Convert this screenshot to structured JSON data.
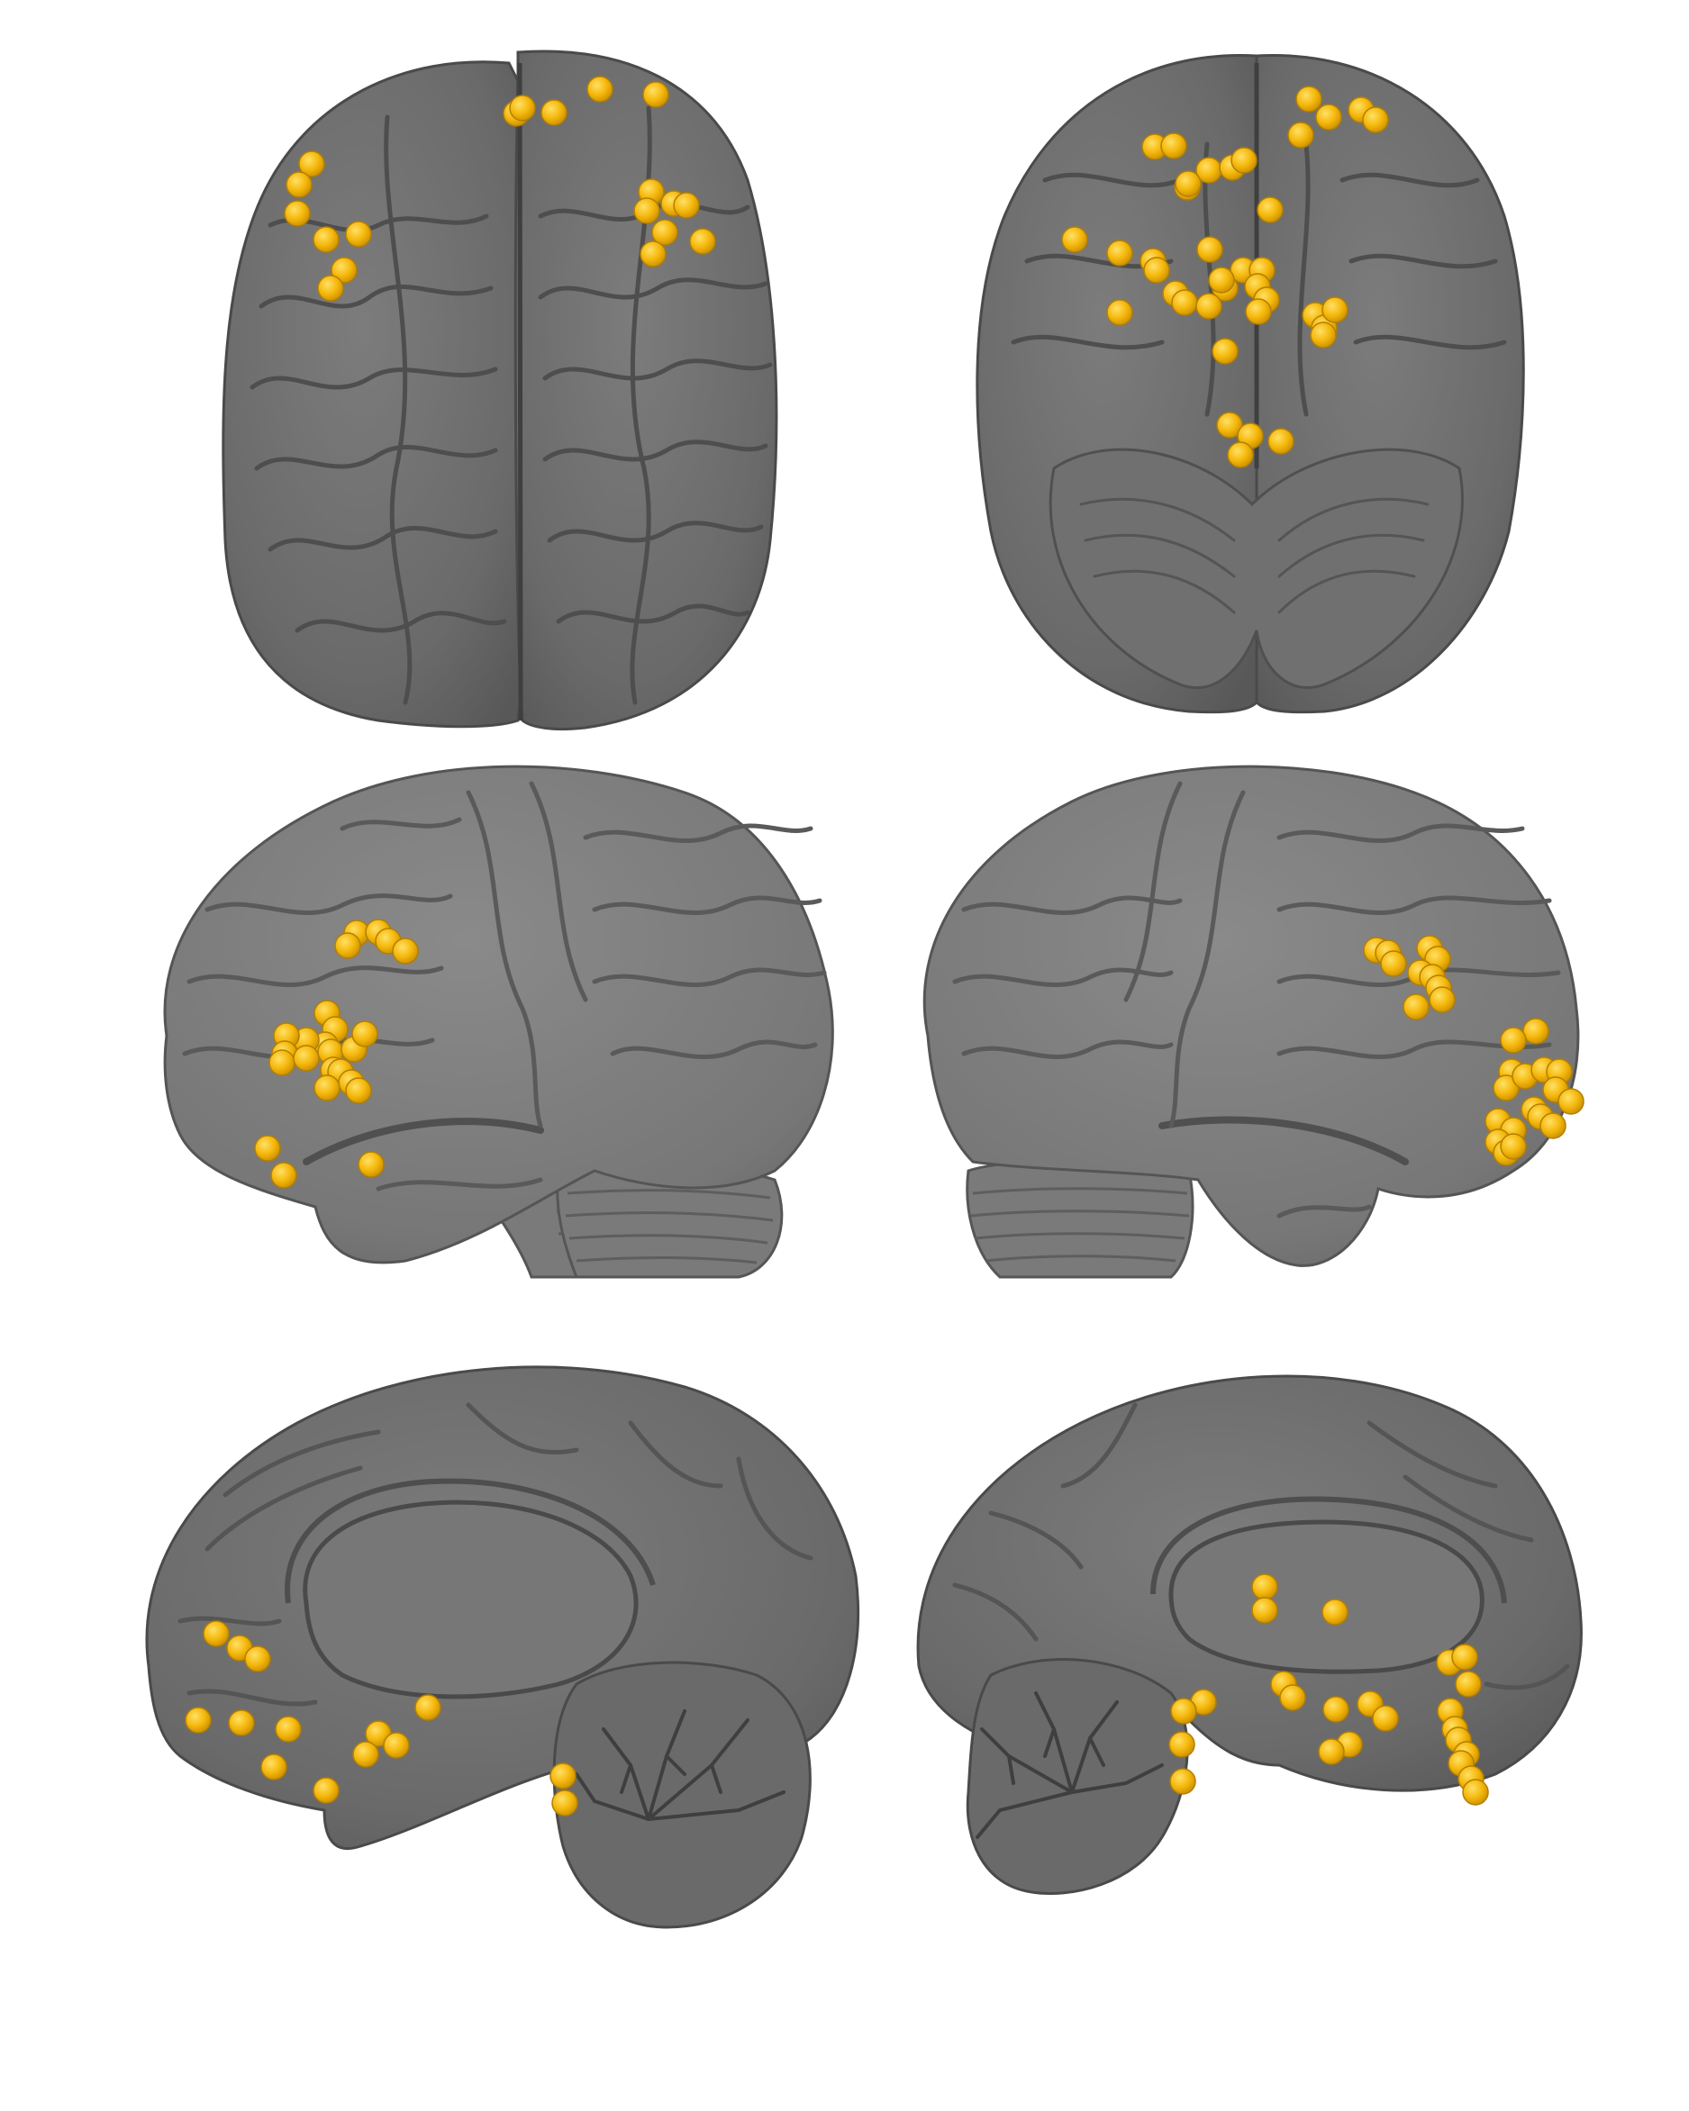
{
  "colors": {
    "background": "#ffffff",
    "brain_fill": "#6e6e6e",
    "brain_fill_light": "#7c7c7c",
    "brain_fill_dark": "#5c5c5c",
    "brain_edge": "#4a4a4a",
    "sulcus": "#3f3f3f",
    "foci_fill": "#f5b80c",
    "foci_highlight": "#ffe066",
    "foci_edge": "#b37f00"
  },
  "panels": [
    {
      "name": "panel-dorsal-view",
      "icon": "brain-dorsal-view-icon"
    },
    {
      "name": "panel-ventral-view",
      "icon": "brain-ventral-view-icon"
    },
    {
      "name": "panel-left-lateral-view",
      "icon": "brain-left-lateral-view-icon"
    },
    {
      "name": "panel-right-lateral-view",
      "icon": "brain-right-lateral-view-icon"
    },
    {
      "name": "panel-left-medial-view",
      "icon": "brain-left-medial-view-icon"
    },
    {
      "name": "panel-right-medial-view",
      "icon": "brain-right-medial-view-icon"
    }
  ]
}
